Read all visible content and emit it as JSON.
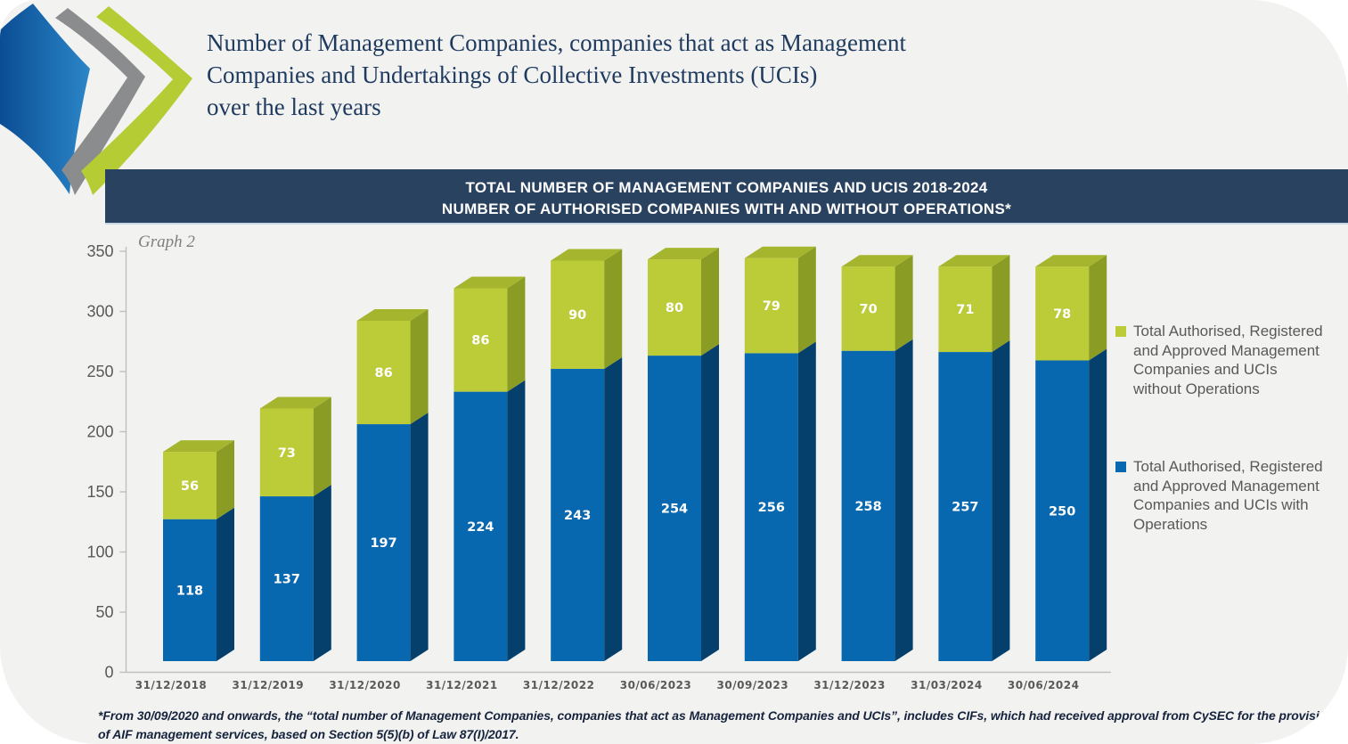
{
  "title": {
    "lines": [
      "Number of Management Companies, companies that act as Management",
      "Companies and Undertakings of Collective Investments (UCIs)",
      "over the last years"
    ]
  },
  "banner": {
    "line1": "TOTAL NUMBER OF MANAGEMENT COMPANIES AND UCIS 2018-2024",
    "line2": "NUMBER OF AUTHORISED COMPANIES WITH AND WITHOUT OPERATIONS*"
  },
  "graph_label": "Graph 2",
  "chart_data": {
    "type": "bar",
    "stacked": true,
    "effect_3d": true,
    "title": "TOTAL NUMBER OF MANAGEMENT COMPANIES AND UCIS 2018-2024 — NUMBER OF AUTHORISED COMPANIES WITH AND WITHOUT OPERATIONS*",
    "categories": [
      "31/12/2018",
      "31/12/2019",
      "31/12/2020",
      "31/12/2021",
      "31/12/2022",
      "30/06/2023",
      "30/09/2023",
      "31/12/2023",
      "31/03/2024",
      "30/06/2024"
    ],
    "series": [
      {
        "name": "Total Authorised, Registered and Approved Management Companies and UCIs with Operations",
        "color": "#0768B0",
        "values": [
          118,
          137,
          197,
          224,
          243,
          254,
          256,
          258,
          257,
          250
        ]
      },
      {
        "name": "Total Authorised, Registered and Approved Management Companies and UCIs without Operations",
        "color": "#BCCB38",
        "values": [
          56,
          73,
          86,
          86,
          90,
          80,
          79,
          70,
          71,
          78
        ]
      }
    ],
    "xlabel": "",
    "ylabel": "",
    "ylim": [
      0,
      350
    ],
    "ytick_step": 50,
    "gridlines": false,
    "legend_position": "right"
  },
  "legend": {
    "items": [
      {
        "label": "Total Authorised, Registered and Approved Management Companies and UCIs without Operations",
        "color": "#BCCB38",
        "lines": [
          "Total Authorised, Registered",
          "and Approved Management",
          "Companies and UCIs",
          "without Operations"
        ]
      },
      {
        "label": "Total Authorised, Registered and Approved Management Companies and UCIs with Operations",
        "color": "#0768B0",
        "lines": [
          "Total Authorised, Registered",
          "and Approved Management",
          "Companies and UCIs with",
          "Operations"
        ]
      }
    ]
  },
  "footnote": {
    "line1": "*From 30/09/2020 and onwards, the “total number of Management Companies, companies that act as Management Companies and UCIs”, includes CIFs, which had received approval from CySEC for the provision",
    "line2": "of AIF management services, based on Section 5(5)(b) of Law 87(I)/2017."
  },
  "colors": {
    "card_bg": "#F2F2F1",
    "banner_bg": "#294260",
    "banner_text": "#FFFFFF",
    "title_text": "#1F3A5F",
    "bar_blue_front": "#0768B0",
    "bar_blue_side": "#05406D",
    "bar_green_front": "#BCCB38",
    "bar_green_side": "#8B9C24",
    "bar_green_top": "#A5B62E",
    "axis_line": "#BFBFBF",
    "tick_text": "#595959",
    "data_label_text": "#FFFFFF",
    "legend_text": "#595959",
    "footnote_text": "#16233D",
    "logo_blue": "#1267AE",
    "logo_gray": "#8A8C8E",
    "logo_green": "#B6CC35"
  }
}
